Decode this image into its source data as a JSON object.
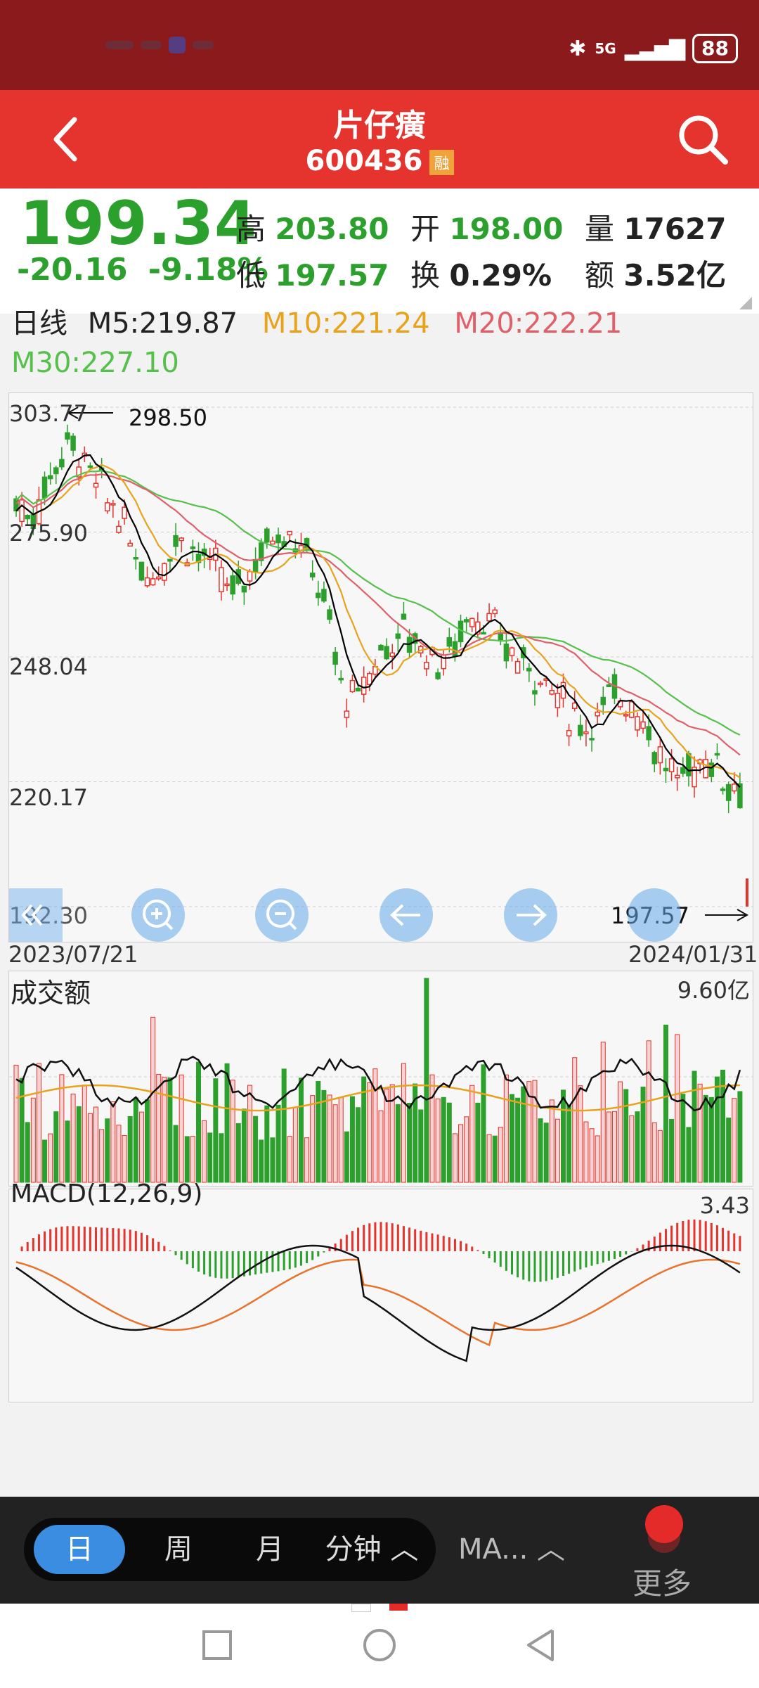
{
  "status_bar": {
    "network": "5G",
    "battery": "88",
    "icons": [
      "bluetooth-icon",
      "signal-icon",
      "battery-icon"
    ]
  },
  "header": {
    "title": "片仔癀",
    "code": "600436",
    "badge": "融",
    "back_icon": "back-arrow-icon",
    "search_icon": "search-icon"
  },
  "quote": {
    "price": "199.34",
    "change": "-20.16",
    "change_pct": "-9.18%",
    "high_label": "高",
    "high": "203.80",
    "low_label": "低",
    "low": "197.57",
    "open_label": "开",
    "open": "198.00",
    "turnover_label": "换",
    "turnover": "0.29%",
    "volume_label": "量",
    "volume": "17627",
    "amount_label": "额",
    "amount": "3.52亿"
  },
  "ma": {
    "period": "日线",
    "m5": "M5:219.87",
    "m10": "M10:221.24",
    "m20": "M20:222.21",
    "m30": "M30:227.10"
  },
  "colors": {
    "up": "#e5332d",
    "down": "#2ca02c",
    "m5": "#000000",
    "m10": "#e8a31d",
    "m20": "#e0606a",
    "m30": "#55c14b",
    "header": "#e5332d",
    "status": "#8b1a1c"
  },
  "chart_data": [
    {
      "type": "candlestick",
      "title": "日线",
      "x_start": "2023/07/21",
      "x_end": "2024/01/31",
      "y_ticks": [
        "303.77",
        "275.90",
        "248.04",
        "220.17",
        "192.30"
      ],
      "ylim": [
        192.3,
        303.77
      ],
      "max_marker": "298.50",
      "min_marker": "197.57",
      "close_path": [
        283,
        279,
        281,
        287,
        292,
        296,
        294,
        290,
        286,
        283,
        280,
        274,
        270,
        266,
        268,
        272,
        275,
        273,
        271,
        268,
        266,
        262,
        264,
        268,
        272,
        275,
        277,
        276,
        272,
        268,
        262,
        252,
        240,
        238,
        241,
        246,
        250,
        252,
        254,
        252,
        250,
        248,
        247,
        251,
        256,
        258,
        256,
        253,
        250,
        248,
        246,
        245,
        243,
        240,
        236,
        234,
        233,
        235,
        238,
        240,
        239,
        236,
        232,
        226,
        222,
        221,
        223,
        224,
        226,
        223,
        220,
        219
      ],
      "series_lines": [
        {
          "name": "M5",
          "value": "219.87"
        },
        {
          "name": "M10",
          "value": "221.24"
        },
        {
          "name": "M20",
          "value": "222.21"
        },
        {
          "name": "M30",
          "value": "227.10"
        }
      ]
    },
    {
      "type": "bar",
      "title": "成交额",
      "max_label": "9.60亿"
    },
    {
      "type": "bar",
      "title": "MACD(12,26,9)",
      "max_label": "3.43"
    }
  ],
  "chart_controls": [
    "rewind-icon",
    "zoom-in-icon",
    "zoom-out-icon",
    "left-arrow-icon",
    "right-arrow-icon",
    "fast-forward-icon"
  ],
  "bottom_bar": {
    "tabs": [
      {
        "label": "日",
        "active": true
      },
      {
        "label": "周"
      },
      {
        "label": "月"
      },
      {
        "label": "分钟 ︿"
      }
    ],
    "ma_select": "MA... ︿",
    "more": "更多"
  }
}
